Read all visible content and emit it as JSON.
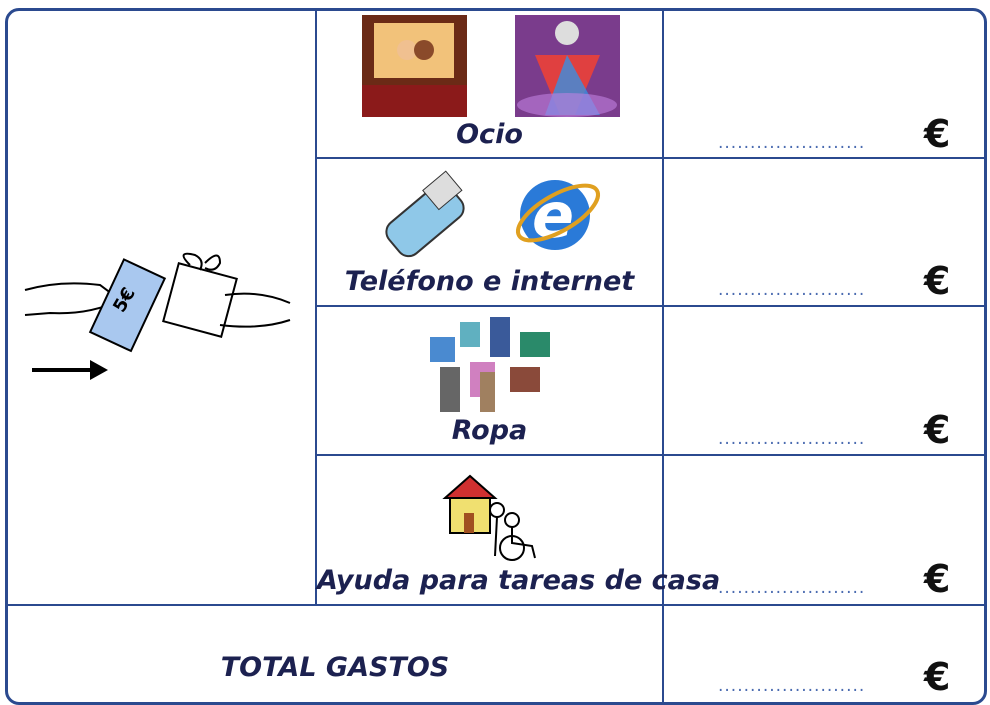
{
  "rows": [
    {
      "label": "Ocio",
      "blank": ".......................",
      "currency": "€"
    },
    {
      "label": "Teléfono e internet",
      "blank": ".......................",
      "currency": "€"
    },
    {
      "label": "Ropa",
      "blank": ".......................",
      "currency": "€"
    },
    {
      "label": "Ayuda para tareas de casa",
      "blank": ".......................",
      "currency": "€"
    }
  ],
  "total": {
    "label": "TOTAL GASTOS",
    "blank": ".......................",
    "currency": "€"
  }
}
